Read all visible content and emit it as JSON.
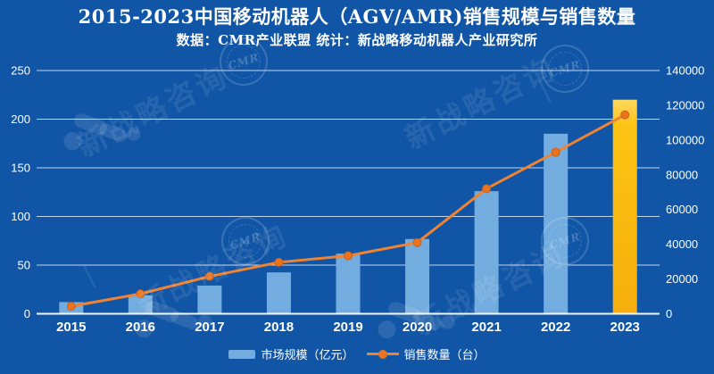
{
  "header": {
    "title": "2015-2023中国移动机器人（AGV/AMR)销售规模与销售数量",
    "subtitle": "数据：CMR产业联盟 统计：新战略移动机器人产业研究所"
  },
  "legend": {
    "items": [
      {
        "label": "市场规模（亿元）",
        "swatch": "bar-swatch"
      },
      {
        "label": "销售数量（台）",
        "swatch": "line-swatch"
      }
    ]
  },
  "watermark": {
    "brand_text": "新战略咨询",
    "divider": "|",
    "stamp_text": "CMR"
  },
  "colors": {
    "background": "#1156a6",
    "bar": "#73acde",
    "bar_highlight_top": "#ffd95e",
    "bar_highlight_mid": "#fdc414",
    "bar_highlight_bottom": "#f6ae0c",
    "line": "#f08332",
    "point": "#e9731f",
    "point_stroke": "#c8601a",
    "grid": "rgba(255,255,255,0.75)",
    "axis": "rgba(255,255,255,0.95)",
    "text": "#ffffff"
  },
  "chart_data": {
    "type": "bar",
    "title": "2015-2023中国移动机器人（AGV/AMR)销售规模与销售数量",
    "subtitle": "数据：CMR产业联盟 统计：新战略移动机器人产业研究所",
    "categories": [
      "2015",
      "2016",
      "2017",
      "2018",
      "2019",
      "2020",
      "2021",
      "2022",
      "2023"
    ],
    "series": [
      {
        "name": "市场规模（亿元）",
        "type": "bar",
        "axis": "left",
        "values": [
          12,
          19,
          29,
          42.5,
          61.75,
          76.8,
          126,
          185,
          220
        ],
        "highlight_last": true
      },
      {
        "name": "销售数量（台）",
        "type": "line",
        "axis": "right",
        "values": [
          4300,
          11500,
          21500,
          29600,
          33400,
          41000,
          72000,
          93000,
          114500
        ]
      }
    ],
    "left_axis": {
      "min": 0,
      "max": 250,
      "step": 50,
      "ticks": [
        "0",
        "50",
        "100",
        "150",
        "200",
        "250"
      ]
    },
    "right_axis": {
      "min": 0,
      "max": 140000,
      "step": 20000,
      "ticks": [
        "0",
        "20000",
        "40000",
        "60000",
        "80000",
        "100000",
        "120000",
        "140000"
      ]
    },
    "grid": true,
    "legend_position": "bottom"
  }
}
